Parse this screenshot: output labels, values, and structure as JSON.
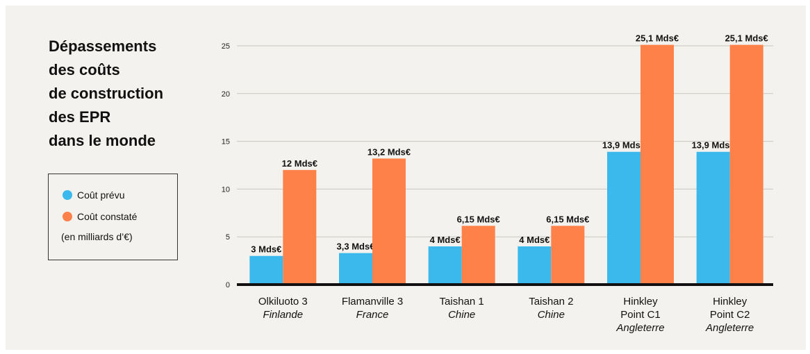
{
  "title_lines": [
    "Dépassements",
    "des coûts",
    "de construction",
    "des EPR",
    "dans le monde"
  ],
  "legend": {
    "items": [
      {
        "label": "Coût prévu",
        "color": "#3bb9ec"
      },
      {
        "label": "Coût constaté",
        "color": "#ff814a"
      }
    ],
    "note": "(en milliards d’€)"
  },
  "chart_data": {
    "type": "bar",
    "title": "Dépassements des coûts de construction des EPR dans le monde",
    "categories": [
      {
        "lines": [
          "Olkiluoto 3"
        ],
        "country": "Finlande"
      },
      {
        "lines": [
          "Flamanville 3"
        ],
        "country": "France"
      },
      {
        "lines": [
          "Taishan 1"
        ],
        "country": "Chine"
      },
      {
        "lines": [
          "Taishan 2"
        ],
        "country": "Chine"
      },
      {
        "lines": [
          "Hinkley",
          "Point C1"
        ],
        "country": "Angleterre"
      },
      {
        "lines": [
          "Hinkley",
          "Point C2"
        ],
        "country": "Angleterre"
      }
    ],
    "series": [
      {
        "name": "Coût prévu",
        "color": "#3bb9ec",
        "values": [
          3,
          3.3,
          4,
          4,
          13.9,
          13.9
        ],
        "labels": [
          "3 Mds€",
          "3,3 Mds€",
          "4 Mds€",
          "4 Mds€",
          "13,9 Mds€",
          "13,9 Mds€"
        ]
      },
      {
        "name": "Coût constaté",
        "color": "#ff814a",
        "values": [
          12,
          13.2,
          6.15,
          6.15,
          25.1,
          25.1
        ],
        "labels": [
          "12 Mds€",
          "13,2 Mds€",
          "6,15 Mds€",
          "6,15 Mds€",
          "25,1 Mds€",
          "25,1 Mds€"
        ]
      }
    ],
    "yticks": [
      "0",
      "5",
      "10",
      "15",
      "20",
      "25"
    ],
    "ylim": [
      0,
      25
    ],
    "grid": true,
    "legend_position": "left"
  }
}
